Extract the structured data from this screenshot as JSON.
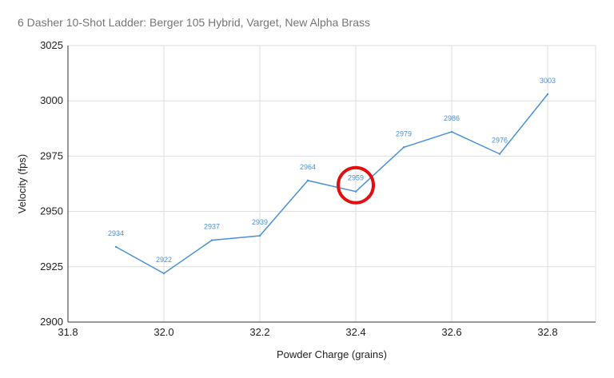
{
  "chart_data": {
    "type": "line",
    "title": "6 Dasher 10-Shot Ladder: Berger 105 Hybrid, Varget, New Alpha Brass",
    "xlabel": "Powder Charge (grains)",
    "ylabel": "Velocity (fps)",
    "xlim": [
      31.8,
      32.9
    ],
    "ylim": [
      2900,
      3025
    ],
    "x_ticks": [
      "31.8",
      "32.0",
      "32.2",
      "32.4",
      "32.6",
      "32.8"
    ],
    "x_tick_values": [
      31.8,
      32.0,
      32.2,
      32.4,
      32.6,
      32.8
    ],
    "y_ticks": [
      "2900",
      "2925",
      "2950",
      "2975",
      "3000",
      "3025"
    ],
    "y_tick_values": [
      2900,
      2925,
      2950,
      2975,
      3000,
      3025
    ],
    "grid": true,
    "legend": "none",
    "series_color": "#4a90d9",
    "highlight_color": "#e01010",
    "highlight_x": 32.4,
    "x": [
      31.9,
      32.0,
      32.1,
      32.2,
      32.3,
      32.4,
      32.5,
      32.6,
      32.7,
      32.8
    ],
    "series": [
      {
        "values": [
          2934,
          2922,
          2937,
          2939,
          2964,
          2959,
          2979,
          2986,
          2976,
          3003
        ],
        "labels": [
          "2934",
          "2922",
          "2937",
          "2939",
          "2964",
          "2959",
          "2979",
          "2986",
          "2976",
          "3003"
        ]
      }
    ]
  }
}
